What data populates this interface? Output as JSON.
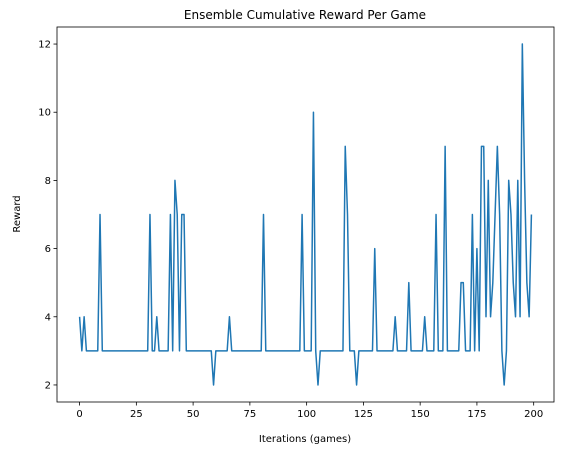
{
  "chart_data": {
    "type": "line",
    "title": "Ensemble Cumulative Reward Per Game",
    "x_label": "Iterations (games)",
    "y_label": "Reward",
    "x": [
      0,
      1,
      2,
      3,
      4,
      5,
      6,
      7,
      8,
      9,
      10,
      11,
      12,
      13,
      14,
      15,
      16,
      17,
      18,
      19,
      20,
      21,
      22,
      23,
      24,
      25,
      26,
      27,
      28,
      29,
      30,
      31,
      32,
      33,
      34,
      35,
      36,
      37,
      38,
      39,
      40,
      41,
      42,
      43,
      44,
      45,
      46,
      47,
      48,
      49,
      50,
      51,
      52,
      53,
      54,
      55,
      56,
      57,
      58,
      59,
      60,
      61,
      62,
      63,
      64,
      65,
      66,
      67,
      68,
      69,
      70,
      71,
      72,
      73,
      74,
      75,
      76,
      77,
      78,
      79,
      80,
      81,
      82,
      83,
      84,
      85,
      86,
      87,
      88,
      89,
      90,
      91,
      92,
      93,
      94,
      95,
      96,
      97,
      98,
      99,
      100,
      101,
      102,
      103,
      104,
      105,
      106,
      107,
      108,
      109,
      110,
      111,
      112,
      113,
      114,
      115,
      116,
      117,
      118,
      119,
      120,
      121,
      122,
      123,
      124,
      125,
      126,
      127,
      128,
      129,
      130,
      131,
      132,
      133,
      134,
      135,
      136,
      137,
      138,
      139,
      140,
      141,
      142,
      143,
      144,
      145,
      146,
      147,
      148,
      149,
      150,
      151,
      152,
      153,
      154,
      155,
      156,
      157,
      158,
      159,
      160,
      161,
      162,
      163,
      164,
      165,
      166,
      167,
      168,
      169,
      170,
      171,
      172,
      173,
      174,
      175,
      176,
      177,
      178,
      179,
      180,
      181,
      182,
      183,
      184,
      185,
      186,
      187,
      188,
      189,
      190,
      191,
      192,
      193,
      194,
      195,
      196,
      197,
      198,
      199
    ],
    "series": [
      {
        "name": "Reward",
        "color": "#1f77b4",
        "values": [
          4,
          3,
          4,
          3,
          3,
          3,
          3,
          3,
          3,
          7,
          3,
          3,
          3,
          3,
          3,
          3,
          3,
          3,
          3,
          3,
          3,
          3,
          3,
          3,
          3,
          3,
          3,
          3,
          3,
          3,
          3,
          7,
          3,
          3,
          4,
          3,
          3,
          3,
          3,
          3,
          7,
          3,
          8,
          7,
          3,
          7,
          7,
          3,
          3,
          3,
          3,
          3,
          3,
          3,
          3,
          3,
          3,
          3,
          3,
          2,
          3,
          3,
          3,
          3,
          3,
          3,
          4,
          3,
          3,
          3,
          3,
          3,
          3,
          3,
          3,
          3,
          3,
          3,
          3,
          3,
          3,
          7,
          3,
          3,
          3,
          3,
          3,
          3,
          3,
          3,
          3,
          3,
          3,
          3,
          3,
          3,
          3,
          3,
          7,
          3,
          3,
          3,
          3,
          10,
          3,
          2,
          3,
          3,
          3,
          3,
          3,
          3,
          3,
          3,
          3,
          3,
          3,
          9,
          7,
          3,
          3,
          3,
          2,
          3,
          3,
          3,
          3,
          3,
          3,
          3,
          6,
          3,
          3,
          3,
          3,
          3,
          3,
          3,
          3,
          4,
          3,
          3,
          3,
          3,
          3,
          5,
          3,
          3,
          3,
          3,
          3,
          3,
          4,
          3,
          3,
          3,
          3,
          7,
          3,
          3,
          3,
          9,
          3,
          3,
          3,
          3,
          3,
          3,
          5,
          5,
          3,
          3,
          3,
          7,
          3,
          6,
          3,
          9,
          9,
          4,
          8,
          4,
          5,
          7,
          9,
          7,
          3,
          2,
          3,
          8,
          7,
          5,
          4,
          8,
          4,
          12,
          8,
          5,
          4,
          7
        ]
      }
    ],
    "xlim": [
      -9.95,
      208.95
    ],
    "ylim": [
      1.5,
      12.5
    ],
    "xticks": [
      0,
      25,
      50,
      75,
      100,
      125,
      150,
      175,
      200
    ],
    "yticks": [
      2,
      4,
      6,
      8,
      10,
      12
    ]
  }
}
